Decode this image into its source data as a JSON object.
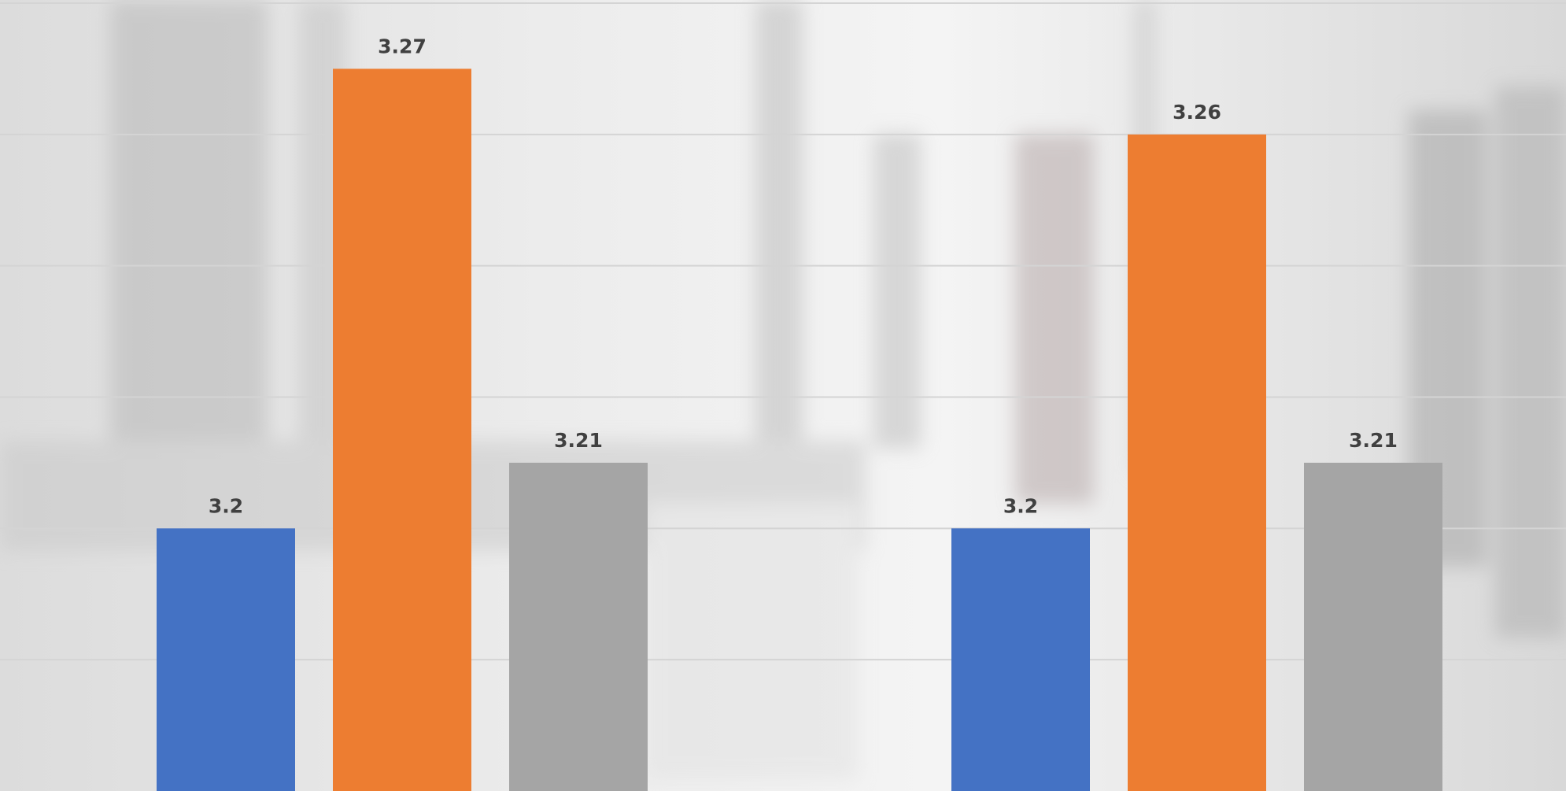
{
  "chart_data": {
    "type": "bar",
    "categories": [
      null,
      null
    ],
    "series": [
      {
        "color": "#4472c4",
        "values": [
          3.2,
          3.2
        ]
      },
      {
        "color": "#ed7d31",
        "values": [
          3.27,
          3.26
        ]
      },
      {
        "color": "#a5a5a5",
        "values": [
          3.21,
          3.21
        ]
      }
    ],
    "ylim": [
      3.16,
      3.28
    ],
    "yticks": [
      3.18,
      3.2,
      3.22,
      3.24,
      3.26,
      3.28
    ],
    "grid": true
  }
}
